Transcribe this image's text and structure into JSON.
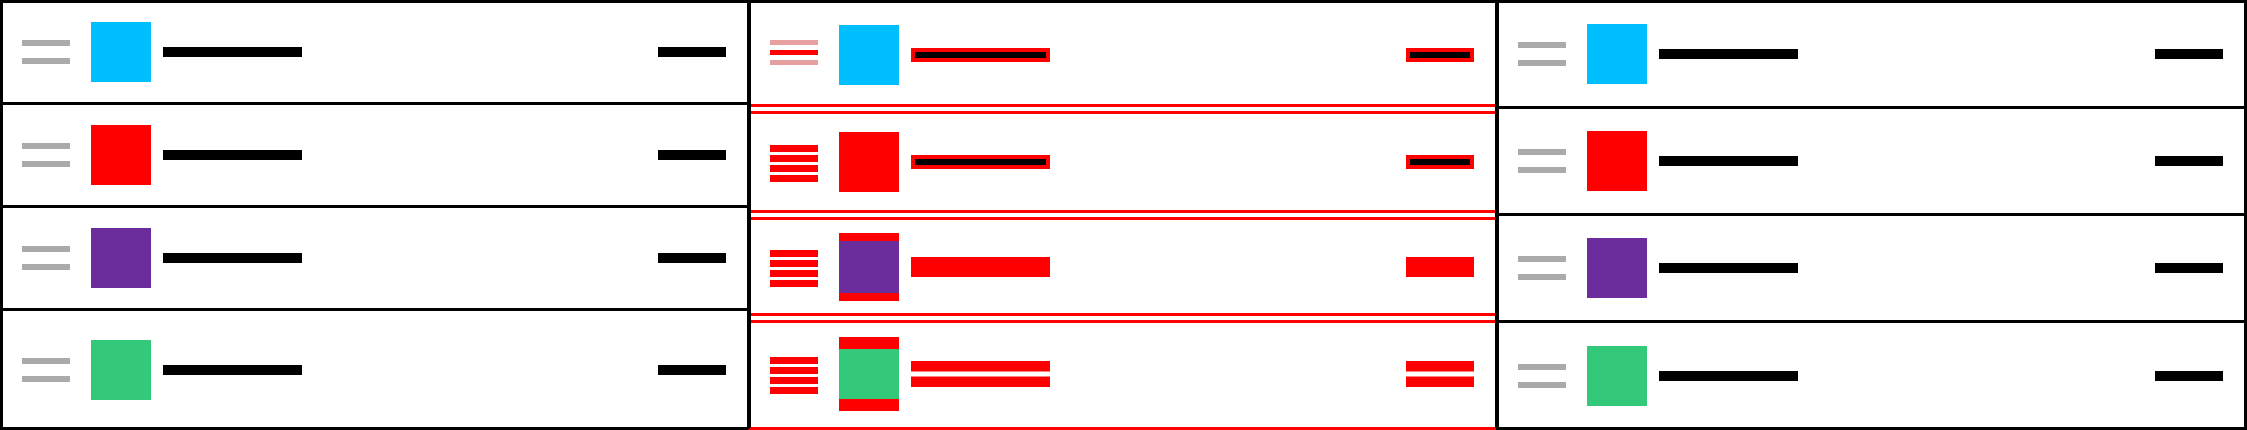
{
  "colors": {
    "border": "#000000",
    "grip_idle": "#aaaaaa",
    "grip_active": "#ff0000",
    "text_placeholder": "#000000",
    "highlight": "#ff0000"
  },
  "panels": [
    {
      "state": "idle",
      "rows": [
        {
          "swatch_color": "#00bfff",
          "grip_icon": "drag-handle-icon"
        },
        {
          "swatch_color": "#ff0000",
          "grip_icon": "drag-handle-icon"
        },
        {
          "swatch_color": "#6b2d9b",
          "grip_icon": "drag-handle-icon"
        },
        {
          "swatch_color": "#33c87a",
          "grip_icon": "drag-handle-icon"
        }
      ]
    },
    {
      "state": "dragging",
      "rows": [
        {
          "swatch_color": "#00bfff",
          "grip_icon": "drag-handle-icon"
        },
        {
          "swatch_color": "#ff0000",
          "grip_icon": "drag-handle-icon"
        },
        {
          "swatch_color": "#6b2d9b",
          "grip_icon": "drag-handle-icon"
        },
        {
          "swatch_color": "#33c87a",
          "grip_icon": "drag-handle-icon"
        }
      ]
    },
    {
      "state": "dropped",
      "rows": [
        {
          "swatch_color": "#00bfff",
          "grip_icon": "drag-handle-icon"
        },
        {
          "swatch_color": "#ff0000",
          "grip_icon": "drag-handle-icon"
        },
        {
          "swatch_color": "#6b2d9b",
          "grip_icon": "drag-handle-icon"
        },
        {
          "swatch_color": "#33c87a",
          "grip_icon": "drag-handle-icon"
        }
      ]
    }
  ]
}
